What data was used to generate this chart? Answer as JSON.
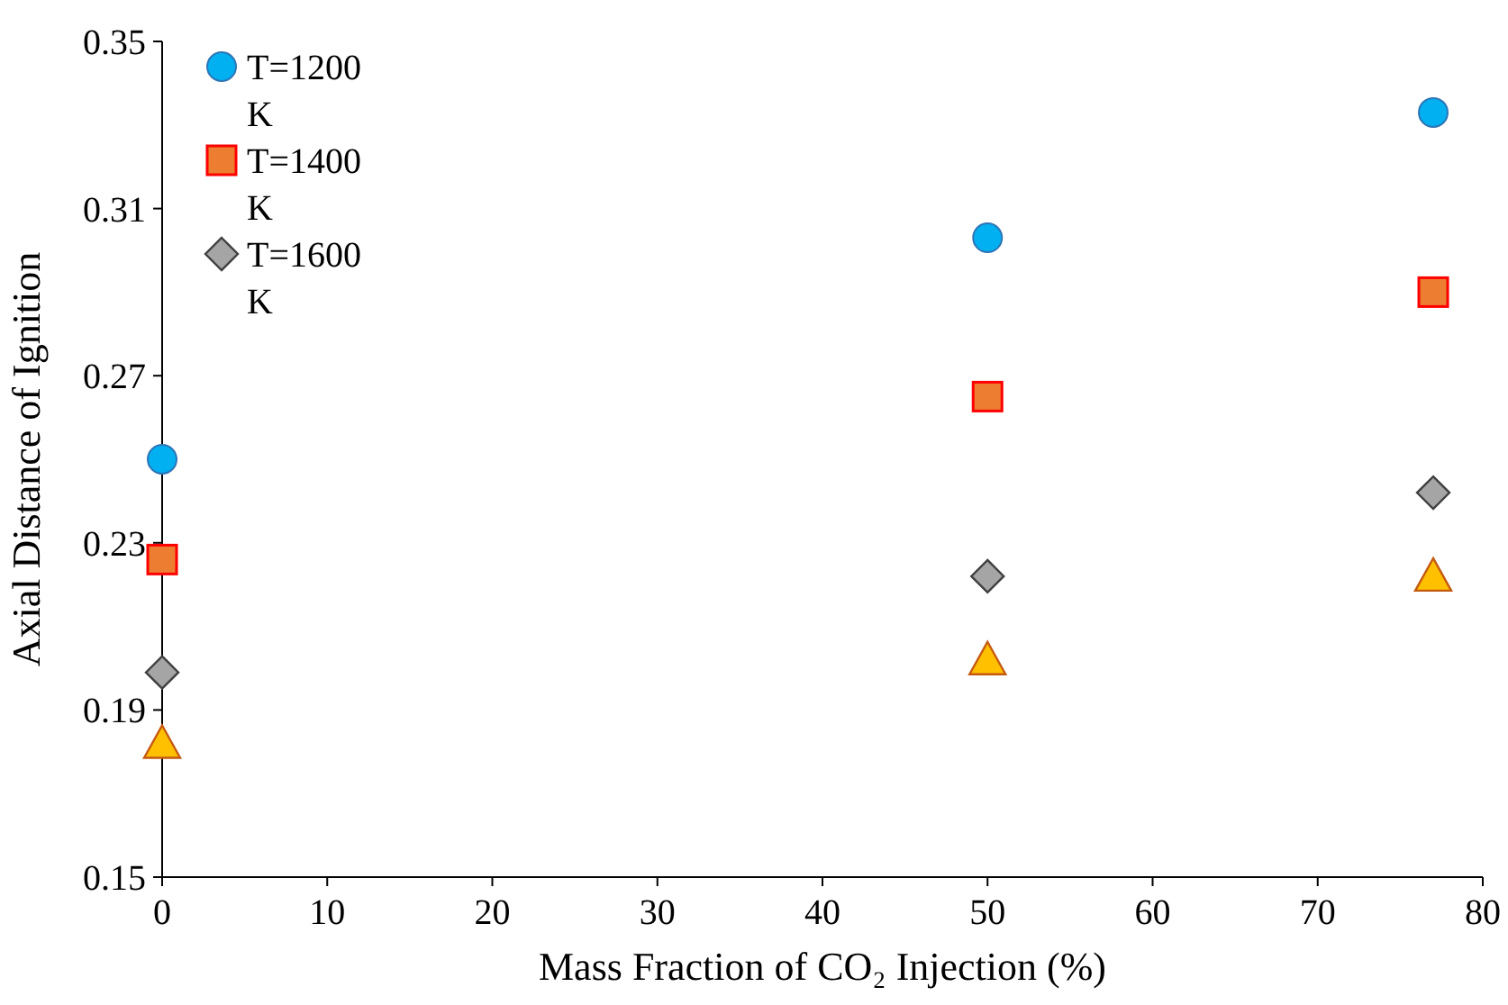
{
  "chart_data": {
    "type": "scatter",
    "xlabel": "Mass Fraction of CO₂ Injection (%)",
    "ylabel": "Axial Distance of Ignition",
    "xlim": [
      0,
      80
    ],
    "xticks": [
      0,
      10,
      20,
      30,
      40,
      50,
      60,
      70,
      80
    ],
    "ylim": [
      0.15,
      0.35
    ],
    "yticks": [
      0.15,
      0.19,
      0.23,
      0.27,
      0.31,
      0.35
    ],
    "legend": "top left",
    "grid": false,
    "series": [
      {
        "name": "T=1200 K",
        "color": "#00b0f0",
        "marker": "circle",
        "x": [
          0,
          50,
          77
        ],
        "values": [
          0.25,
          0.303,
          0.333
        ]
      },
      {
        "name": "T=1400 K",
        "color": "#ed7d31",
        "marker": "square",
        "x": [
          0,
          50,
          77
        ],
        "values": [
          0.226,
          0.265,
          0.29
        ]
      },
      {
        "name": "T=1600 K",
        "color": "#a5a5a5",
        "marker": "diamond",
        "x": [
          0,
          50,
          77
        ],
        "values": [
          0.199,
          0.222,
          0.242
        ]
      },
      {
        "color": "#ffc000",
        "marker": "triangle",
        "x": [
          0,
          50,
          77
        ],
        "values": [
          0.182,
          0.202,
          0.222
        ]
      }
    ]
  }
}
